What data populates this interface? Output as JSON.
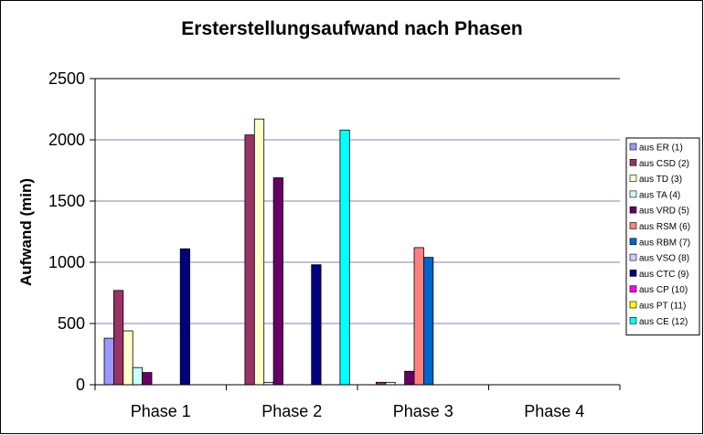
{
  "chart_data": {
    "type": "bar",
    "title": "Ersterstellungsaufwand nach Phasen",
    "xlabel": "",
    "ylabel": "Aufwand (min)",
    "ylim": [
      0,
      2500
    ],
    "yticks": [
      "0",
      "500",
      "1000",
      "1500",
      "2000",
      "2500"
    ],
    "grid": true,
    "legend_position": "right",
    "categories": [
      "Phase 1",
      "Phase 2",
      "Phase 3",
      "Phase 4"
    ],
    "series": [
      {
        "name": "aus ER (1)",
        "color": "#9999ff",
        "values": [
          380,
          0,
          0,
          0
        ]
      },
      {
        "name": "aus CSD (2)",
        "color": "#993366",
        "values": [
          770,
          2040,
          20,
          0
        ]
      },
      {
        "name": "aus TD (3)",
        "color": "#ffffcc",
        "values": [
          440,
          2170,
          20,
          0
        ]
      },
      {
        "name": "aus TA (4)",
        "color": "#ccffff",
        "values": [
          140,
          20,
          0,
          0
        ]
      },
      {
        "name": "aus VRD (5)",
        "color": "#660066",
        "values": [
          100,
          1690,
          110,
          0
        ]
      },
      {
        "name": "aus RSM (6)",
        "color": "#ff8080",
        "values": [
          0,
          0,
          1120,
          0
        ]
      },
      {
        "name": "aus RBM (7)",
        "color": "#0066cc",
        "values": [
          0,
          0,
          1040,
          0
        ]
      },
      {
        "name": "aus VSO (8)",
        "color": "#ccccff",
        "values": [
          0,
          0,
          0,
          0
        ]
      },
      {
        "name": "aus CTC (9)",
        "color": "#000080",
        "values": [
          1110,
          980,
          0,
          0
        ]
      },
      {
        "name": "aus CP (10)",
        "color": "#ff00ff",
        "values": [
          0,
          0,
          0,
          0
        ]
      },
      {
        "name": "aus PT (11)",
        "color": "#ffff00",
        "values": [
          0,
          0,
          0,
          0
        ]
      },
      {
        "name": "aus CE (12)",
        "color": "#00ffff",
        "values": [
          0,
          2080,
          0,
          0
        ]
      }
    ]
  }
}
